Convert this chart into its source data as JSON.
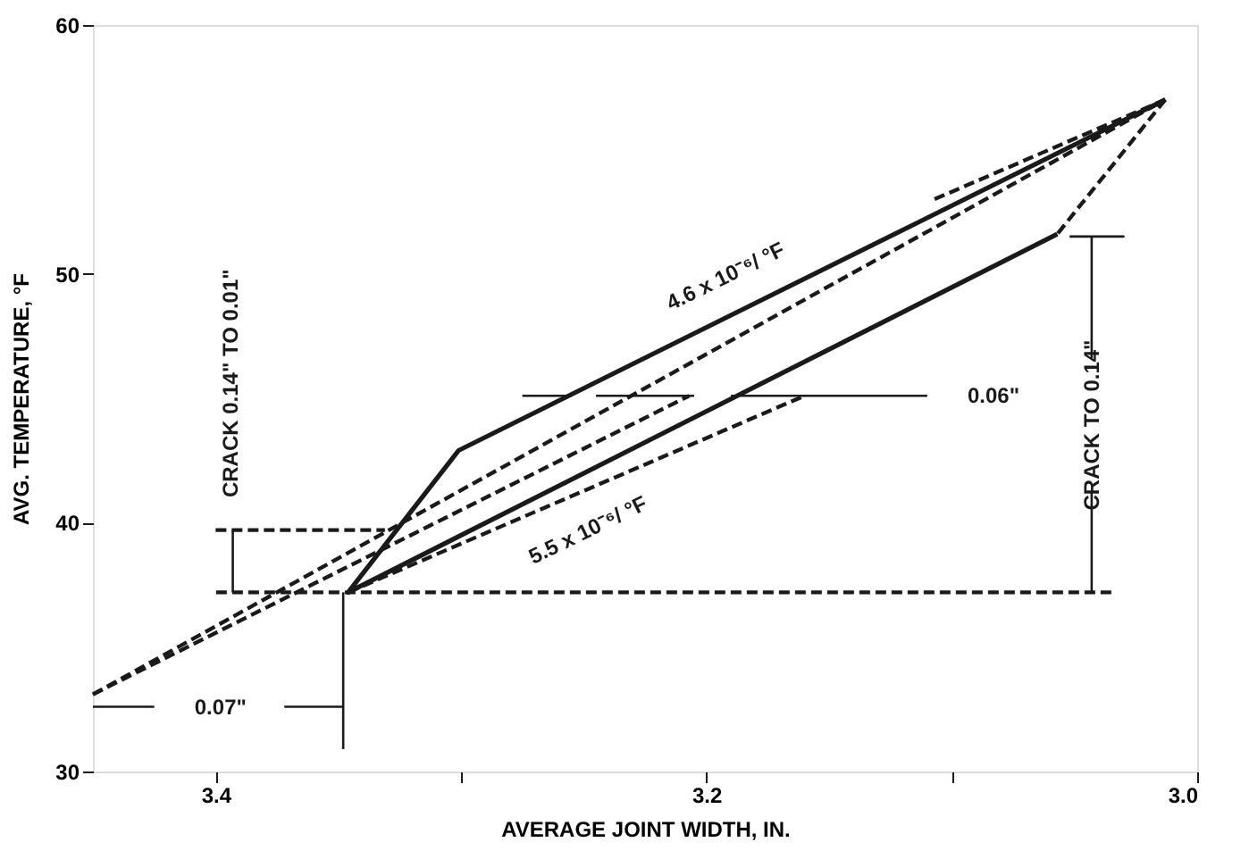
{
  "chart_data": {
    "type": "line",
    "xlabel": "AVERAGE JOINT WIDTH, IN.",
    "ylabel": "AVG. TEMPERATURE, °F",
    "xlim": [
      3.45,
      3.0
    ],
    "ylim": [
      30,
      60
    ],
    "xticks": [
      3.4,
      {
        "value": 3.3,
        "label": null
      },
      3.2,
      {
        "value": 3.1,
        "label": null
      },
      {
        "value": 3.0,
        "label": "3.0"
      }
    ],
    "yticks": [
      30,
      40,
      50,
      60
    ],
    "grid": false,
    "marker": "none",
    "series": [
      {
        "color": "#1a1a1a",
        "line_style": "solid",
        "x": [
          3.057,
          3.346,
          3.301,
          3.013
        ],
        "values": [
          51.6,
          37.2,
          42.9,
          57.0
        ]
      },
      {
        "color": "#1a1a1a",
        "line_style": "dashed",
        "x": [
          3.013,
          3.057
        ],
        "values": [
          57.0,
          51.6
        ]
      },
      {
        "color": "#1a1a1a",
        "line_style": "dashed",
        "x": [
          3.45,
          3.013
        ],
        "values": [
          33.1,
          57.0
        ]
      },
      {
        "color": "#1a1a1a",
        "line_style": "dashed",
        "x": [
          3.45,
          3.207
        ],
        "values": [
          33.1,
          45.1
        ]
      },
      {
        "color": "#1a1a1a",
        "line_style": "dashed",
        "x": [
          3.346,
          3.16
        ],
        "values": [
          37.2,
          45.1
        ]
      },
      {
        "color": "#1a1a1a",
        "line_style": "dashed",
        "x": [
          3.107,
          3.013
        ],
        "values": [
          53.0,
          57.0
        ]
      },
      {
        "color": "#1a1a1a",
        "line_style": "dashed",
        "x": [
          3.035,
          3.402
        ],
        "values": [
          37.2,
          37.2
        ]
      },
      {
        "color": "#1a1a1a",
        "line_style": "dashed",
        "x": [
          3.4,
          3.331
        ],
        "values": [
          39.7,
          39.7
        ]
      },
      {
        "color": "#1a1a1a",
        "line_style": "solid",
        "x": [
          3.393,
          3.393
        ],
        "values": [
          37.2,
          39.7
        ]
      },
      {
        "color": "#1a1a1a",
        "line_style": "solid",
        "x": [
          3.348,
          3.348
        ],
        "values": [
          30.9,
          37.2
        ]
      },
      {
        "color": "#1a1a1a",
        "line_style": "solid",
        "x": [
          3.45,
          3.425
        ],
        "values": [
          32.6,
          32.6
        ]
      },
      {
        "color": "#1a1a1a",
        "line_style": "solid",
        "x": [
          3.372,
          3.348
        ],
        "values": [
          32.6,
          32.6
        ]
      },
      {
        "color": "#1a1a1a",
        "line_style": "solid",
        "x": [
          3.052,
          3.03,
          3.043,
          3.043
        ],
        "values": [
          51.5,
          51.5,
          51.5,
          46.6
        ]
      },
      {
        "color": "#1a1a1a",
        "line_style": "solid",
        "x": [
          3.043,
          3.043
        ],
        "values": [
          41.2,
          37.2
        ]
      },
      {
        "color": "#1a1a1a",
        "line_style": "solid",
        "x": [
          3.275,
          3.255
        ],
        "values": [
          45.1,
          45.1
        ]
      },
      {
        "color": "#1a1a1a",
        "line_style": "solid",
        "x": [
          3.245,
          3.205
        ],
        "values": [
          45.1,
          45.1
        ]
      },
      {
        "color": "#1a1a1a",
        "line_style": "solid",
        "x": [
          3.19,
          3.11
        ],
        "values": [
          45.1,
          45.1
        ]
      }
    ],
    "annotations": [
      "CRACK 0.14\" TO 0.01\"",
      "CRACK TO 0.14\"",
      "0.07\"",
      "0.06\"",
      "4.6 x 10⁻⁶/ °F",
      "5.5 x 10⁻⁶/ °F"
    ]
  }
}
